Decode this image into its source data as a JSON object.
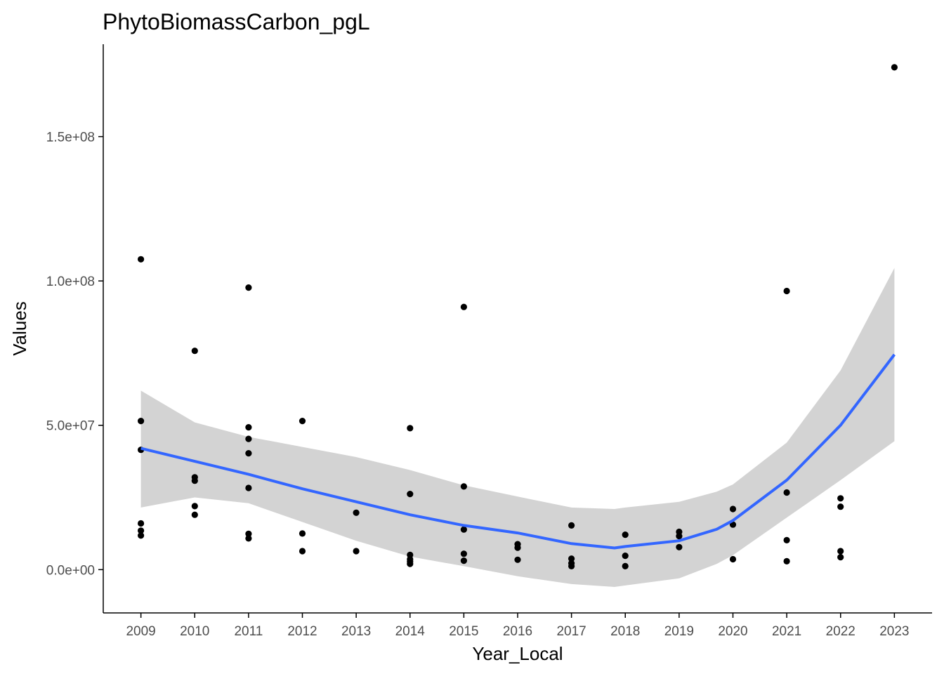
{
  "chart_data": {
    "type": "scatter",
    "title": "PhytoBiomassCarbon_pgL",
    "xlabel": "Year_Local",
    "ylabel": "Values",
    "x_ticks": [
      "2009",
      "2010",
      "2011",
      "2012",
      "2013",
      "2014",
      "2015",
      "2016",
      "2017",
      "2018",
      "2019",
      "2020",
      "2021",
      "2022",
      "2023"
    ],
    "y_ticks": [
      0,
      50000000,
      100000000,
      150000000
    ],
    "y_tick_labels": [
      "0.0e+00",
      "5.0e+07",
      "1.0e+08",
      "1.5e+08"
    ],
    "xlim": [
      2008.3,
      2023.7
    ],
    "ylim": [
      -15000000,
      182000000
    ],
    "grid": false,
    "colors": {
      "points": "#000000",
      "smooth_line": "#3366FF",
      "confidence_band": "#D3D3D3",
      "axis": "#000000",
      "tick_label": "#4D4D4D"
    },
    "points": [
      {
        "x": 2009,
        "y": 107500000
      },
      {
        "x": 2009,
        "y": 51500000
      },
      {
        "x": 2009,
        "y": 41500000
      },
      {
        "x": 2009,
        "y": 16000000
      },
      {
        "x": 2009,
        "y": 13500000
      },
      {
        "x": 2009,
        "y": 11800000
      },
      {
        "x": 2010,
        "y": 75800000
      },
      {
        "x": 2010,
        "y": 32000000
      },
      {
        "x": 2010,
        "y": 30800000
      },
      {
        "x": 2010,
        "y": 22000000
      },
      {
        "x": 2010,
        "y": 19000000
      },
      {
        "x": 2011,
        "y": 97700000
      },
      {
        "x": 2011,
        "y": 49300000
      },
      {
        "x": 2011,
        "y": 45300000
      },
      {
        "x": 2011,
        "y": 40300000
      },
      {
        "x": 2011,
        "y": 28300000
      },
      {
        "x": 2011,
        "y": 12400000
      },
      {
        "x": 2011,
        "y": 10800000
      },
      {
        "x": 2012,
        "y": 51500000
      },
      {
        "x": 2012,
        "y": 12500000
      },
      {
        "x": 2012,
        "y": 6400000
      },
      {
        "x": 2013,
        "y": 19700000
      },
      {
        "x": 2013,
        "y": 6400000
      },
      {
        "x": 2014,
        "y": 49000000
      },
      {
        "x": 2014,
        "y": 26200000
      },
      {
        "x": 2014,
        "y": 5100000
      },
      {
        "x": 2014,
        "y": 3600000
      },
      {
        "x": 2014,
        "y": 2800000
      },
      {
        "x": 2014,
        "y": 2000000
      },
      {
        "x": 2015,
        "y": 91000000
      },
      {
        "x": 2015,
        "y": 28800000
      },
      {
        "x": 2015,
        "y": 13900000
      },
      {
        "x": 2015,
        "y": 5500000
      },
      {
        "x": 2015,
        "y": 3100000
      },
      {
        "x": 2016,
        "y": 8800000
      },
      {
        "x": 2016,
        "y": 7600000
      },
      {
        "x": 2016,
        "y": 3400000
      },
      {
        "x": 2017,
        "y": 15300000
      },
      {
        "x": 2017,
        "y": 3800000
      },
      {
        "x": 2017,
        "y": 2200000
      },
      {
        "x": 2017,
        "y": 1200000
      },
      {
        "x": 2018,
        "y": 12100000
      },
      {
        "x": 2018,
        "y": 4800000
      },
      {
        "x": 2018,
        "y": 1200000
      },
      {
        "x": 2019,
        "y": 13100000
      },
      {
        "x": 2019,
        "y": 11600000
      },
      {
        "x": 2019,
        "y": 7800000
      },
      {
        "x": 2020,
        "y": 21000000
      },
      {
        "x": 2020,
        "y": 15600000
      },
      {
        "x": 2020,
        "y": 3600000
      },
      {
        "x": 2021,
        "y": 96500000
      },
      {
        "x": 2021,
        "y": 26700000
      },
      {
        "x": 2021,
        "y": 10200000
      },
      {
        "x": 2021,
        "y": 2900000
      },
      {
        "x": 2022,
        "y": 24700000
      },
      {
        "x": 2022,
        "y": 21800000
      },
      {
        "x": 2022,
        "y": 6400000
      },
      {
        "x": 2022,
        "y": 4300000
      },
      {
        "x": 2023,
        "y": 174000000
      }
    ],
    "smooth": {
      "x": [
        2009,
        2010,
        2011,
        2012,
        2013,
        2014,
        2015,
        2016,
        2017,
        2017.8,
        2018,
        2019,
        2019.7,
        2020,
        2021,
        2022,
        2023
      ],
      "y": [
        42000000,
        37500000,
        33000000,
        28000000,
        23500000,
        19000000,
        15300000,
        12700000,
        9000000,
        7500000,
        8000000,
        10000000,
        14000000,
        17000000,
        31000000,
        50000000,
        74500000
      ],
      "upper": [
        62000000,
        51000000,
        46000000,
        42500000,
        39000000,
        34500000,
        29200000,
        25300000,
        21500000,
        21000000,
        21500000,
        23500000,
        27000000,
        29500000,
        44000000,
        69000000,
        104500000
      ],
      "lower": [
        21500000,
        25000000,
        23000000,
        16500000,
        10000000,
        4500000,
        1200000,
        -2300000,
        -5000000,
        -6000000,
        -5500000,
        -3000000,
        2000000,
        5000000,
        18000000,
        31000000,
        44500000
      ]
    }
  }
}
